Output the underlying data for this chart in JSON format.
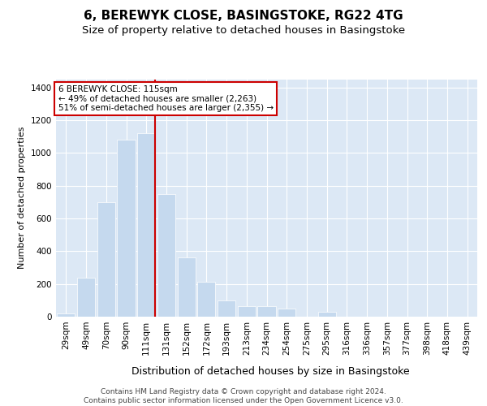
{
  "title": "6, BEREWYK CLOSE, BASINGSTOKE, RG22 4TG",
  "subtitle": "Size of property relative to detached houses in Basingstoke",
  "xlabel": "Distribution of detached houses by size in Basingstoke",
  "ylabel": "Number of detached properties",
  "categories": [
    "29sqm",
    "49sqm",
    "70sqm",
    "90sqm",
    "111sqm",
    "131sqm",
    "152sqm",
    "172sqm",
    "193sqm",
    "213sqm",
    "234sqm",
    "254sqm",
    "275sqm",
    "295sqm",
    "316sqm",
    "336sqm",
    "357sqm",
    "377sqm",
    "398sqm",
    "418sqm",
    "439sqm"
  ],
  "values": [
    20,
    240,
    700,
    1080,
    1120,
    750,
    360,
    215,
    100,
    65,
    65,
    50,
    0,
    30,
    0,
    0,
    0,
    0,
    0,
    0,
    0
  ],
  "bar_color": "#c5d9ee",
  "bar_edgecolor": "white",
  "vline_color": "#cc0000",
  "vline_x": 4.45,
  "annotation_line1": "6 BEREWYK CLOSE: 115sqm",
  "annotation_line2": "← 49% of detached houses are smaller (2,263)",
  "annotation_line3": "51% of semi-detached houses are larger (2,355) →",
  "annotation_box_facecolor": "#ffffff",
  "annotation_box_edgecolor": "#cc0000",
  "ylim": [
    0,
    1450
  ],
  "yticks": [
    0,
    200,
    400,
    600,
    800,
    1000,
    1200,
    1400
  ],
  "grid_color": "#ffffff",
  "plot_bg_color": "#dce8f5",
  "fig_bg_color": "#ffffff",
  "title_fontsize": 11,
  "subtitle_fontsize": 9.5,
  "ylabel_fontsize": 8,
  "xlabel_fontsize": 9,
  "tick_fontsize": 7.5,
  "ann_fontsize": 7.5,
  "footnote": "Contains HM Land Registry data © Crown copyright and database right 2024.\nContains public sector information licensed under the Open Government Licence v3.0.",
  "footnote_fontsize": 6.5
}
